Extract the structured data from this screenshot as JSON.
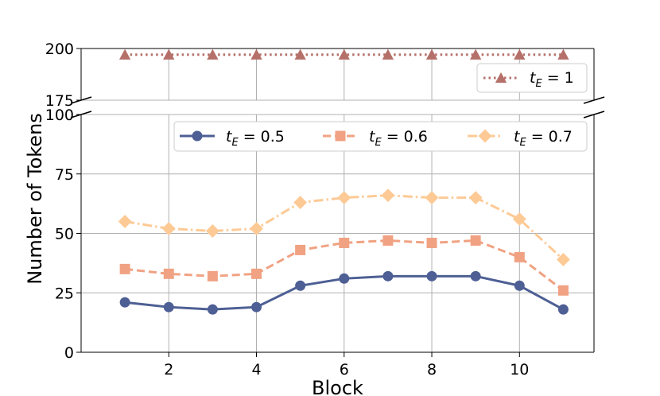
{
  "chart_data": {
    "type": "line",
    "xlabel": "Block",
    "ylabel": "Number of Tokens",
    "x": [
      1,
      2,
      3,
      4,
      5,
      6,
      7,
      8,
      9,
      10,
      11
    ],
    "xticks": [
      2,
      4,
      6,
      8,
      10
    ],
    "xlim": [
      0.0,
      11.7
    ],
    "broken_y_axis": true,
    "top_panel": {
      "ylim": [
        175,
        200
      ],
      "yticks": [
        175,
        200
      ],
      "legend_position": "right",
      "series": [
        {
          "name": "t_E = 1",
          "label_base": "t",
          "label_sub": "E",
          "label_rest": " = 1",
          "color": "#b5706a",
          "marker": "triangle",
          "linestyle": "dotted",
          "values": [
            197,
            197,
            197,
            197,
            197,
            197,
            197,
            197,
            197,
            197,
            197
          ]
        }
      ]
    },
    "bottom_panel": {
      "ylim": [
        0,
        100
      ],
      "yticks": [
        0,
        25,
        50,
        75,
        100
      ],
      "legend_position": "top-right",
      "series": [
        {
          "name": "t_E = 0.5",
          "label_base": "t",
          "label_sub": "E",
          "label_rest": " = 0.5",
          "color": "#4d5f94",
          "marker": "circle",
          "linestyle": "solid",
          "values": [
            21,
            19,
            18,
            19,
            28,
            31,
            32,
            32,
            32,
            28,
            18
          ]
        },
        {
          "name": "t_E = 0.6",
          "label_base": "t",
          "label_sub": "E",
          "label_rest": " = 0.6",
          "color": "#f0a282",
          "marker": "square",
          "linestyle": "dashed",
          "values": [
            35,
            33,
            32,
            33,
            43,
            46,
            47,
            46,
            47,
            40,
            26
          ]
        },
        {
          "name": "t_E = 0.7",
          "label_base": "t",
          "label_sub": "E",
          "label_rest": " = 0.7",
          "color": "#fdca96",
          "marker": "diamond",
          "linestyle": "dashdot",
          "values": [
            55,
            52,
            51,
            52,
            63,
            65,
            66,
            65,
            65,
            56,
            39
          ]
        }
      ]
    }
  }
}
